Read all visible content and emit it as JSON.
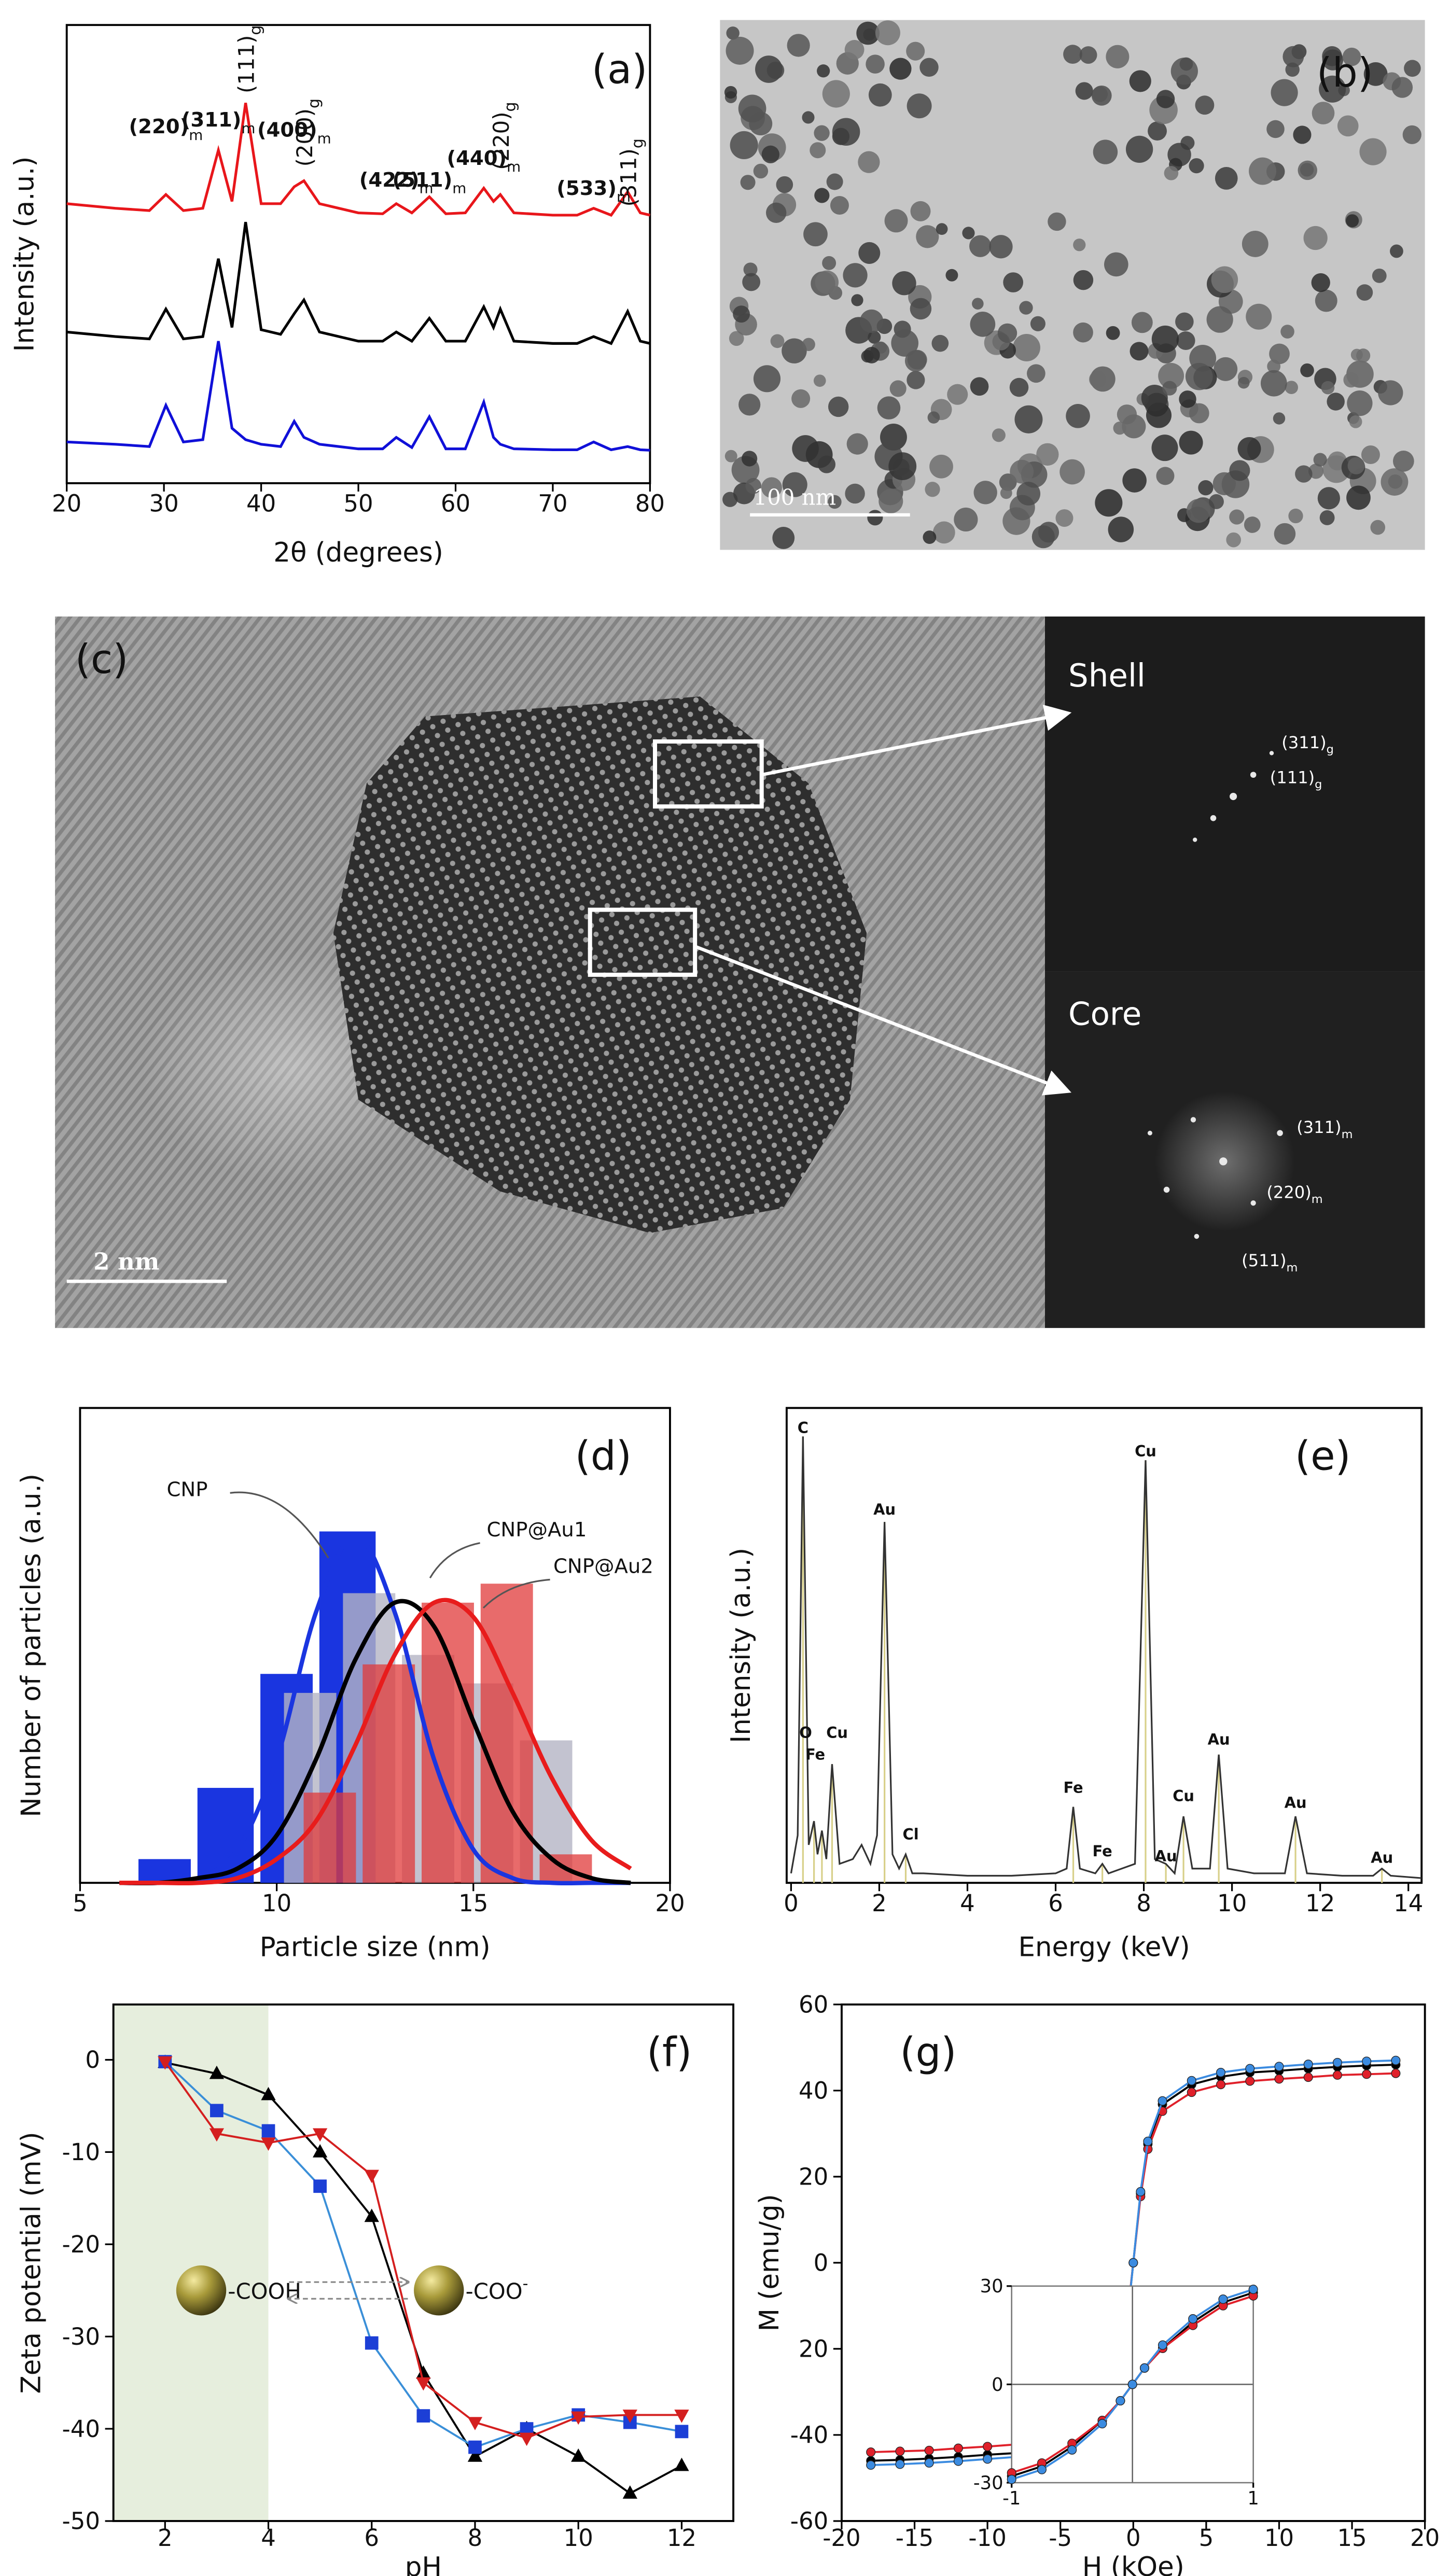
{
  "chart_data": [
    {
      "type": "line",
      "label": "(a)",
      "x_label": "2θ (degrees)",
      "y_label": "Intensity (a.u.)",
      "xlim": [
        20,
        80
      ],
      "xticks": [
        20,
        30,
        40,
        50,
        60,
        70,
        80
      ],
      "ylim": [
        0,
        100
      ],
      "x": [
        20,
        25,
        28.5,
        30.2,
        32,
        34,
        35.6,
        37,
        38.4,
        40,
        42,
        43.4,
        44.4,
        46,
        50,
        52.5,
        53.9,
        55.5,
        57.3,
        59,
        61,
        62.9,
        63.9,
        64.6,
        66,
        70,
        72.5,
        74.2,
        76,
        77.7,
        79,
        80
      ],
      "series": [
        {
          "color": "#e8161b",
          "values": [
            61,
            60,
            59.5,
            63,
            59.5,
            60,
            72.7,
            61.5,
            83,
            61,
            61,
            64.7,
            66,
            61,
            59,
            58.8,
            61,
            59,
            62.5,
            58.8,
            59,
            64.4,
            61.5,
            63,
            59,
            58.5,
            58.5,
            60,
            58.5,
            63.6,
            59,
            58.5
          ]
        },
        {
          "color": "#000000",
          "values": [
            33,
            32,
            31.5,
            38,
            31.5,
            32,
            49,
            34,
            57,
            33.5,
            32.5,
            37,
            40,
            33,
            31,
            31,
            33,
            31,
            36,
            31,
            31,
            38.5,
            34,
            38,
            31,
            30.5,
            30.5,
            32,
            30.5,
            37.5,
            31,
            30.5
          ]
        },
        {
          "color": "#1010d8",
          "values": [
            9,
            8.5,
            8,
            17,
            9,
            9.5,
            31,
            12,
            9.5,
            8.5,
            8,
            13.5,
            10,
            8.5,
            7.5,
            7.5,
            10,
            7.8,
            14.5,
            7.5,
            7.5,
            17.7,
            10,
            8.5,
            7.5,
            7.3,
            7.3,
            9,
            7.3,
            8,
            7.3,
            7.2
          ]
        }
      ],
      "annotations": [
        {
          "text": "(220)",
          "sub": "m",
          "x": 30.2
        },
        {
          "text": "(311)",
          "sub": "m",
          "x": 35.6
        },
        {
          "text": "(111)",
          "sub": "g",
          "x": 38.4
        },
        {
          "text": "(400)",
          "sub": "m",
          "x": 43.4
        },
        {
          "text": "(200)",
          "sub": "g",
          "x": 44.4
        },
        {
          "text": "(422)",
          "sub": "m",
          "x": 53.9
        },
        {
          "text": "(511)",
          "sub": "m",
          "x": 57.3
        },
        {
          "text": "(440)",
          "sub": "m",
          "x": 62.9
        },
        {
          "text": "(220)",
          "sub": "g",
          "x": 64.6
        },
        {
          "text": "(533)",
          "sub": "m",
          "x": 74.2
        },
        {
          "text": "(311)",
          "sub": "g",
          "x": 77.7
        }
      ]
    },
    {
      "type": "histogram",
      "label": "(d)",
      "x_label": "Particle size (nm)",
      "y_label": "Number of particles (a.u.)",
      "xlim": [
        5,
        20
      ],
      "xticks": [
        5,
        10,
        15,
        20
      ],
      "ylim": [
        0,
        1
      ],
      "curve_x": [
        6,
        7,
        8,
        9,
        10,
        11,
        12,
        13,
        14,
        15,
        16,
        17,
        18,
        19
      ],
      "series": [
        {
          "name": "CNP",
          "color": "#1a35e0",
          "bar_color": "#1a35e0",
          "bar_opacity": 1,
          "bins": [
            6.4,
            7.9,
            9.5,
            11.0,
            12.6
          ],
          "values": [
            0.05,
            0.2,
            0.44,
            0.74
          ],
          "curve": [
            0,
            0,
            0.01,
            0.07,
            0.26,
            0.57,
            0.73,
            0.57,
            0.26,
            0.07,
            0.01,
            0,
            0,
            0
          ]
        },
        {
          "name": "CNP@Au1",
          "color": "#000000",
          "bar_color": "#b4b4c4",
          "bar_opacity": 0.8,
          "bins": [
            10.1,
            11.6,
            13.1,
            14.6,
            16.1,
            17.6
          ],
          "values": [
            0.4,
            0.61,
            0.48,
            0.42,
            0.3
          ],
          "curve": [
            0,
            0,
            0.01,
            0.03,
            0.1,
            0.26,
            0.47,
            0.59,
            0.54,
            0.34,
            0.15,
            0.05,
            0.01,
            0
          ]
        },
        {
          "name": "CNP@Au2",
          "color": "#e81c1c",
          "bar_color": "#e03a3a",
          "bar_opacity": 0.75,
          "bins": [
            10.6,
            12.1,
            13.6,
            15.1,
            16.6,
            18.1
          ],
          "values": [
            0.19,
            0.46,
            0.59,
            0.63,
            0.06
          ],
          "curve": [
            0,
            0,
            0,
            0.01,
            0.05,
            0.13,
            0.29,
            0.48,
            0.59,
            0.56,
            0.4,
            0.22,
            0.09,
            0.03
          ]
        }
      ]
    },
    {
      "type": "line",
      "label": "(e)",
      "x_label": "Energy (keV)",
      "y_label": "Intensity (a.u.)",
      "xlim": [
        -0.1,
        14.3
      ],
      "xticks": [
        0,
        2,
        4,
        6,
        8,
        10,
        12,
        14
      ],
      "ylim": [
        0,
        1
      ],
      "annotation_color": "#d8d08a",
      "x": [
        0,
        0.15,
        0.27,
        0.4,
        0.52,
        0.6,
        0.7,
        0.8,
        0.93,
        1.1,
        1.4,
        1.6,
        1.8,
        1.95,
        2.12,
        2.3,
        2.45,
        2.6,
        2.75,
        3,
        4,
        5,
        6,
        6.25,
        6.4,
        6.55,
        6.9,
        7.06,
        7.2,
        7.8,
        8.04,
        8.25,
        8.5,
        8.7,
        8.9,
        9.1,
        9.5,
        9.7,
        9.9,
        10.5,
        11.2,
        11.44,
        11.7,
        12.5,
        13.2,
        13.4,
        13.6,
        14.3
      ],
      "series": [
        {
          "color": "#333333",
          "values": [
            0.02,
            0.1,
            0.94,
            0.08,
            0.13,
            0.06,
            0.11,
            0.05,
            0.25,
            0.04,
            0.05,
            0.08,
            0.04,
            0.1,
            0.76,
            0.06,
            0.03,
            0.06,
            0.02,
            0.02,
            0.015,
            0.015,
            0.02,
            0.03,
            0.16,
            0.03,
            0.02,
            0.04,
            0.02,
            0.04,
            0.89,
            0.05,
            0.04,
            0.02,
            0.14,
            0.03,
            0.03,
            0.27,
            0.03,
            0.02,
            0.02,
            0.14,
            0.02,
            0.015,
            0.015,
            0.03,
            0.015,
            0.01
          ]
        }
      ],
      "annotations": [
        {
          "text": "C",
          "x": 0.27
        },
        {
          "text": "O",
          "x": 0.52
        },
        {
          "text": "Cu",
          "x": 0.93
        },
        {
          "text": "Fe",
          "x": 0.7
        },
        {
          "text": "Au",
          "x": 2.12
        },
        {
          "text": "Cl",
          "x": 2.6
        },
        {
          "text": "Fe",
          "x": 6.4
        },
        {
          "text": "Fe",
          "x": 7.06
        },
        {
          "text": "Cu",
          "x": 8.04
        },
        {
          "text": "Au",
          "x": 8.5
        },
        {
          "text": "Cu",
          "x": 8.9
        },
        {
          "text": "Au",
          "x": 9.7
        },
        {
          "text": "Au",
          "x": 11.44
        },
        {
          "text": "Au",
          "x": 13.4
        }
      ]
    },
    {
      "type": "line",
      "label": "(f)",
      "x_label": "pH",
      "y_label": "Zeta potential (mV)",
      "xlim": [
        1,
        13
      ],
      "xticks": [
        2,
        4,
        6,
        8,
        10,
        12
      ],
      "ylim": [
        -50,
        6
      ],
      "yticks": [
        0,
        -10,
        -20,
        -30,
        -40,
        -50
      ],
      "shade": [
        1,
        4
      ],
      "shade_color": "#e6eedd",
      "x": [
        2,
        3,
        4,
        5,
        6,
        7,
        8,
        9,
        10,
        11,
        12
      ],
      "series": [
        {
          "color": "#000000",
          "line_color": "#000000",
          "marker": "triangle-up",
          "values": [
            -0.3,
            -1.5,
            -3.8,
            -10,
            -17,
            -34,
            -43,
            -40,
            -43,
            -47,
            -44
          ]
        },
        {
          "color": "#1c3fd6",
          "line_color": "#3a8fd8",
          "marker": "square",
          "values": [
            -0.2,
            -5.5,
            -7.7,
            -13.7,
            -30.7,
            -38.6,
            -42,
            -40,
            -38.5,
            -39.3,
            -40.3
          ]
        },
        {
          "color": "#d41f1f",
          "line_color": "#d41f1f",
          "marker": "triangle-down",
          "values": [
            -0.2,
            -8,
            -9,
            -8,
            -12.5,
            -35,
            -39.3,
            -41,
            -38.7,
            -38.5,
            -38.5
          ]
        }
      ],
      "annotations": [
        {
          "text": "-COOH"
        },
        {
          "text": "-COO",
          "sup": "-"
        }
      ]
    },
    {
      "type": "line",
      "label": "(g)",
      "x_label": "H (kOe)",
      "y_label": "M (emu/g)",
      "xlim": [
        -20,
        20
      ],
      "xticks": [
        -20,
        -15,
        -10,
        -5,
        0,
        5,
        10,
        15,
        20
      ],
      "ylim": [
        -60,
        60
      ],
      "yticks": [
        60,
        40,
        20,
        0,
        {
          "value": -20,
          "label": "20"
        },
        -40,
        -60
      ],
      "x": [
        -18,
        -16,
        -14,
        -12,
        -10,
        -8,
        -6,
        -4,
        -2,
        -1,
        -0.5,
        0,
        0.5,
        1,
        2,
        4,
        6,
        8,
        10,
        12,
        14,
        16,
        18
      ],
      "series": [
        {
          "color": "#000000",
          "marker": "circle",
          "values": [
            -46,
            -45.8,
            -45.5,
            -45.1,
            -44.6,
            -44.2,
            -43.2,
            -41.4,
            -36.8,
            -27.6,
            -16.1,
            0,
            16.1,
            27.6,
            36.8,
            41.4,
            43.2,
            44.2,
            44.6,
            45.1,
            45.5,
            45.8,
            46
          ]
        },
        {
          "color": "#e0202a",
          "marker": "circle",
          "values": [
            -44,
            -43.8,
            -43.6,
            -43.1,
            -42.7,
            -42.2,
            -41.4,
            -39.6,
            -35.2,
            -26.4,
            -15.4,
            0,
            15.4,
            26.4,
            35.2,
            39.6,
            41.4,
            42.2,
            42.7,
            43.1,
            43.6,
            43.8,
            44
          ]
        },
        {
          "color": "#3b8be0",
          "marker": "circle",
          "values": [
            -47,
            -46.8,
            -46.5,
            -46.1,
            -45.6,
            -45.1,
            -44.2,
            -42.3,
            -37.6,
            -28.2,
            -16.5,
            0,
            16.5,
            28.2,
            37.6,
            42.3,
            44.2,
            45.1,
            45.6,
            46.1,
            46.5,
            46.8,
            47
          ]
        }
      ]
    },
    {
      "type": "line",
      "xlim": [
        -1,
        1
      ],
      "xticks": [
        -1,
        1
      ],
      "ylim": [
        -30,
        30
      ],
      "yticks": [
        30,
        0,
        -30
      ],
      "x": [
        -1,
        -0.75,
        -0.5,
        -0.25,
        -0.1,
        0,
        0.1,
        0.25,
        0.5,
        0.75,
        1
      ],
      "series": [
        {
          "color": "#000000",
          "marker": "circle",
          "values": [
            -28,
            -25,
            -19,
            -11,
            -5,
            0,
            5,
            11,
            19,
            25,
            28
          ]
        },
        {
          "color": "#e0202a",
          "marker": "circle",
          "values": [
            -27,
            -24,
            -18,
            -11,
            -5,
            0,
            5,
            11,
            18,
            24,
            27
          ]
        },
        {
          "color": "#3b8be0",
          "marker": "circle",
          "values": [
            -29,
            -26,
            -20,
            -12,
            -5,
            0,
            5,
            12,
            20,
            26,
            29
          ]
        }
      ]
    }
  ],
  "images": [
    {
      "label": "(b)",
      "scale_bar": "100 nm"
    },
    {
      "label": "(c)",
      "scale_bar": "2 nm",
      "fft": [
        {
          "title": "Shell",
          "spots": [
            {
              "text": "(311)",
              "sub": "g"
            },
            {
              "text": "(111)",
              "sub": "g"
            }
          ]
        },
        {
          "title": "Core",
          "spots": [
            {
              "text": "(311)",
              "sub": "m"
            },
            {
              "text": "(220)",
              "sub": "m"
            },
            {
              "text": "(511)",
              "sub": "m"
            }
          ]
        }
      ]
    }
  ]
}
